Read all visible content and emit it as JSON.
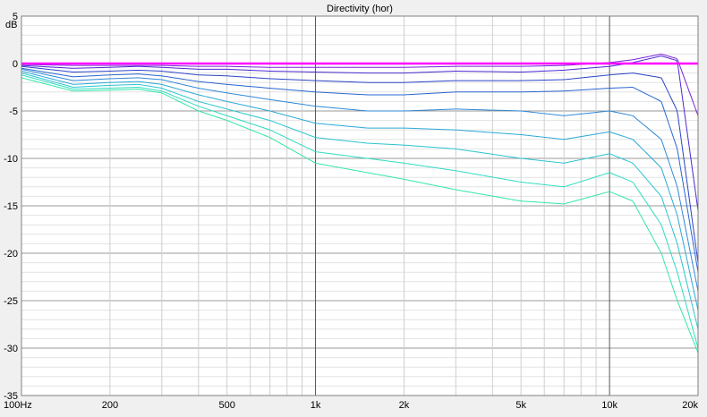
{
  "chart_data": {
    "type": "line",
    "title": "Directivity (hor)",
    "ylabel": "dB",
    "xscale": "log",
    "xlim": [
      100,
      20000
    ],
    "ylim": [
      -35,
      5
    ],
    "grid": true,
    "x_ticks": [
      {
        "v": 100,
        "label": "100Hz"
      },
      {
        "v": 200,
        "label": "200"
      },
      {
        "v": 500,
        "label": "500"
      },
      {
        "v": 1000,
        "label": "1k"
      },
      {
        "v": 2000,
        "label": "2k"
      },
      {
        "v": 5000,
        "label": "5k"
      },
      {
        "v": 10000,
        "label": "10k"
      },
      {
        "v": 20000,
        "label": "20k"
      }
    ],
    "y_ticks": [
      {
        "v": 5,
        "label": "5"
      },
      {
        "v": 0,
        "label": "0"
      },
      {
        "v": -5,
        "label": "-5"
      },
      {
        "v": -10,
        "label": "-10"
      },
      {
        "v": -15,
        "label": "-15"
      },
      {
        "v": -20,
        "label": "-20"
      },
      {
        "v": -25,
        "label": "-25"
      },
      {
        "v": -30,
        "label": "-30"
      },
      {
        "v": -35,
        "label": "-35"
      }
    ],
    "x": [
      100,
      150,
      200,
      250,
      300,
      400,
      500,
      700,
      1000,
      1500,
      2000,
      3000,
      5000,
      7000,
      10000,
      12000,
      15000,
      17000,
      20000
    ],
    "series": [
      {
        "color": "#ff00ff",
        "width": 2.5,
        "values": [
          0,
          0,
          0,
          0,
          0,
          0,
          0,
          0,
          0,
          0,
          0,
          0,
          0,
          0,
          0,
          0,
          0,
          0,
          0
        ]
      },
      {
        "color": "#7a22d8",
        "width": 1,
        "values": [
          -0.1,
          -0.2,
          -0.2,
          -0.2,
          -0.2,
          -0.3,
          -0.3,
          -0.4,
          -0.4,
          -0.4,
          -0.4,
          -0.3,
          -0.3,
          -0.2,
          0.1,
          0.4,
          1.0,
          0.5,
          -5.5
        ]
      },
      {
        "color": "#4a2ad0",
        "width": 1,
        "values": [
          -0.2,
          -0.5,
          -0.4,
          -0.3,
          -0.4,
          -0.6,
          -0.6,
          -0.8,
          -0.9,
          -1.0,
          -1.0,
          -0.8,
          -0.9,
          -0.7,
          -0.3,
          0.1,
          0.8,
          0.3,
          -15.5
        ]
      },
      {
        "color": "#2a44c8",
        "width": 1,
        "values": [
          -0.3,
          -0.9,
          -0.8,
          -0.7,
          -0.8,
          -1.2,
          -1.3,
          -1.6,
          -1.8,
          -2.0,
          -2.0,
          -1.8,
          -1.8,
          -1.7,
          -1.2,
          -1.0,
          -1.5,
          -5,
          -21
        ]
      },
      {
        "color": "#2a66d0",
        "width": 1,
        "values": [
          -0.5,
          -1.4,
          -1.2,
          -1.1,
          -1.3,
          -1.9,
          -2.2,
          -2.6,
          -3.0,
          -3.3,
          -3.3,
          -3.0,
          -3.0,
          -2.9,
          -2.6,
          -2.5,
          -4,
          -9,
          -22
        ]
      },
      {
        "color": "#2f88d8",
        "width": 1,
        "values": [
          -0.6,
          -1.8,
          -1.6,
          -1.5,
          -1.7,
          -2.6,
          -3.1,
          -3.8,
          -4.5,
          -5.0,
          -5.0,
          -4.8,
          -5.0,
          -5.5,
          -5.0,
          -5.5,
          -8,
          -13,
          -24
        ]
      },
      {
        "color": "#2ba8d8",
        "width": 1,
        "values": [
          -0.8,
          -2.2,
          -2.0,
          -1.9,
          -2.2,
          -3.3,
          -4.0,
          -5.0,
          -6.3,
          -6.8,
          -6.8,
          -7.0,
          -7.5,
          -8.0,
          -7.2,
          -8.0,
          -11,
          -16,
          -26
        ]
      },
      {
        "color": "#2ac4d0",
        "width": 1,
        "values": [
          -1.0,
          -2.5,
          -2.3,
          -2.2,
          -2.6,
          -4.0,
          -4.8,
          -6.0,
          -7.8,
          -8.4,
          -8.6,
          -9.0,
          -10.0,
          -10.5,
          -9.5,
          -10.5,
          -14,
          -19,
          -28
        ]
      },
      {
        "color": "#2edcc0",
        "width": 1,
        "values": [
          -1.2,
          -2.7,
          -2.6,
          -2.5,
          -2.9,
          -4.5,
          -5.5,
          -7.0,
          -9.3,
          -10.0,
          -10.5,
          -11.3,
          -12.5,
          -13.0,
          -11.5,
          -12.5,
          -17,
          -22,
          -30
        ]
      },
      {
        "color": "#33e6a6",
        "width": 1,
        "values": [
          -1.5,
          -2.9,
          -2.8,
          -2.7,
          -3.1,
          -5.0,
          -6.0,
          -7.8,
          -10.5,
          -11.5,
          -12.2,
          -13.3,
          -14.5,
          -14.8,
          -13.5,
          -14.5,
          -20,
          -25,
          -30.5
        ]
      }
    ]
  }
}
